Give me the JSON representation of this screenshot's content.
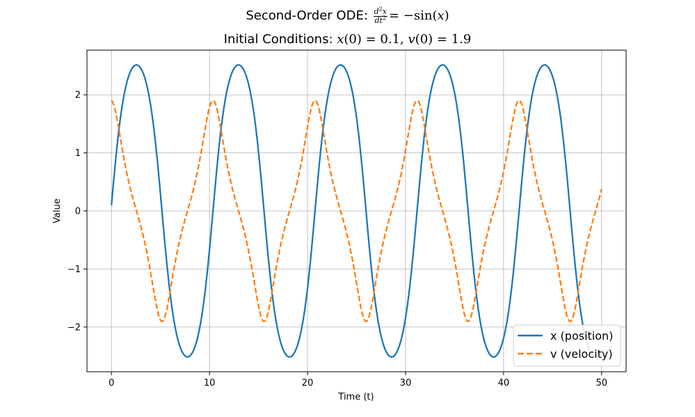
{
  "chart_data": {
    "type": "line",
    "title": {
      "line1_text": "Second-Order ODE: ",
      "line1_eq_num": "d",
      "line1_eq_num_exp": "2",
      "line1_eq_num_var": "x",
      "line1_eq_den": "dt",
      "line1_eq_den_exp": "2",
      "line1_eq_rhs": "= −sin(",
      "line1_eq_rhs_var": "x",
      "line1_eq_rhs_close": ")",
      "line2_text": "Initial Conditions: ",
      "line2_x_var": "x",
      "line2_x_arg": "(0) = 0.1, ",
      "line2_v_var": "v",
      "line2_v_arg": "(0) = 1.9"
    },
    "xlabel": "Time (t)",
    "ylabel": "Value",
    "xlim": [
      -2.5,
      52.5
    ],
    "ylim": [
      -2.77,
      2.77
    ],
    "xticks": [
      0,
      10,
      20,
      30,
      40,
      50
    ],
    "yticks": [
      -2,
      -1,
      0,
      1,
      2
    ],
    "ytick_labels": [
      "−2",
      "−1",
      "0",
      "1",
      "2"
    ],
    "grid": true,
    "legend_position": "lower-right",
    "ode": {
      "equation": "x'' = -sin(x)",
      "x0": 0.1,
      "v0": 1.9,
      "t_start": 0,
      "t_end": 50
    },
    "series": [
      {
        "name": "x (position)",
        "color": "#1f77b4",
        "style": "solid",
        "variable": "x"
      },
      {
        "name": "v (velocity)",
        "color": "#ff7f0e",
        "style": "dashed",
        "variable": "v"
      }
    ]
  }
}
